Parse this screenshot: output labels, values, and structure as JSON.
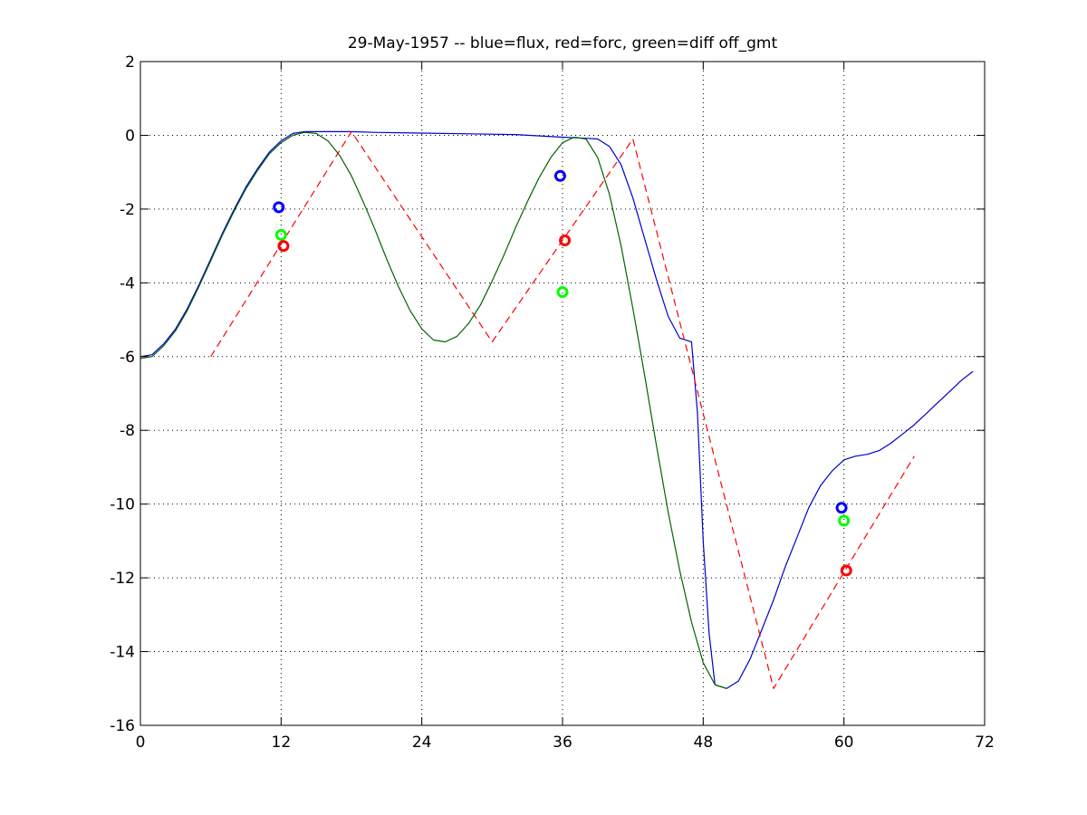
{
  "chart_data": {
    "type": "line",
    "title": "29-May-1957 -- blue=flux, red=forc, green=diff off_gmt",
    "xlabel": "",
    "ylabel": "",
    "xlim": [
      0,
      72
    ],
    "ylim": [
      -16,
      2
    ],
    "xticks": [
      0,
      12,
      24,
      36,
      48,
      60,
      72
    ],
    "yticks": [
      2,
      0,
      -2,
      -4,
      -6,
      -8,
      -10,
      -12,
      -14,
      -16
    ],
    "xtick_labels": [
      "0",
      "12",
      "24",
      "36",
      "48",
      "60",
      "72"
    ],
    "ytick_labels": [
      "2",
      "0",
      "-2",
      "-4",
      "-6",
      "-8",
      "-10",
      "-12",
      "-14",
      "-16"
    ],
    "grid": true,
    "legend": "none",
    "series": [
      {
        "name": "flux",
        "color": "#0000cc",
        "style": "solid",
        "x": [
          0,
          1,
          2,
          3,
          4,
          5,
          6,
          7,
          8,
          9,
          10,
          11,
          12,
          13,
          14,
          15,
          16,
          18,
          20,
          24,
          28,
          32,
          36,
          38,
          39,
          40,
          41,
          42,
          43,
          44,
          45,
          46,
          47,
          47.5,
          48,
          48.5,
          49,
          50,
          51,
          52,
          53,
          54,
          55,
          56,
          57,
          58,
          59,
          60,
          61,
          62,
          63,
          64,
          65,
          66,
          67,
          68,
          69,
          70,
          71
        ],
        "y": [
          -6.0,
          -5.95,
          -5.65,
          -5.25,
          -4.7,
          -4.05,
          -3.35,
          -2.65,
          -2.0,
          -1.4,
          -0.9,
          -0.45,
          -0.15,
          0.05,
          0.1,
          0.1,
          0.1,
          0.1,
          0.08,
          0.06,
          0.04,
          0.02,
          -0.05,
          -0.08,
          -0.1,
          -0.3,
          -0.8,
          -1.7,
          -2.8,
          -3.9,
          -4.9,
          -5.5,
          -5.6,
          -7.5,
          -11.0,
          -13.5,
          -14.9,
          -15.0,
          -14.8,
          -14.2,
          -13.4,
          -12.6,
          -11.7,
          -10.9,
          -10.1,
          -9.5,
          -9.1,
          -8.8,
          -8.7,
          -8.65,
          -8.55,
          -8.35,
          -8.1,
          -7.85,
          -7.55,
          -7.25,
          -6.95,
          -6.65,
          -6.4
        ]
      },
      {
        "name": "forc",
        "color": "#ff0000",
        "style": "dashed",
        "x": [
          6,
          18,
          30,
          42,
          54,
          66
        ],
        "y": [
          -6.0,
          0.1,
          -5.6,
          -0.1,
          -15.0,
          -8.7
        ]
      },
      {
        "name": "diff",
        "color": "#006400",
        "style": "solid",
        "x": [
          0,
          1,
          2,
          3,
          4,
          5,
          6,
          7,
          8,
          9,
          10,
          11,
          12,
          13,
          14,
          15,
          16,
          17,
          18,
          19,
          20,
          21,
          22,
          23,
          24,
          25,
          26,
          27,
          28,
          29,
          30,
          31,
          32,
          33,
          34,
          35,
          36,
          37,
          38,
          39,
          40,
          41,
          42,
          43,
          44,
          45,
          46,
          47,
          48,
          49,
          50
        ],
        "y": [
          -6.05,
          -6.0,
          -5.7,
          -5.3,
          -4.75,
          -4.1,
          -3.4,
          -2.7,
          -2.05,
          -1.45,
          -0.95,
          -0.5,
          -0.2,
          0.0,
          0.08,
          0.05,
          -0.15,
          -0.55,
          -1.1,
          -1.8,
          -2.55,
          -3.35,
          -4.1,
          -4.75,
          -5.25,
          -5.55,
          -5.6,
          -5.45,
          -5.1,
          -4.6,
          -3.95,
          -3.25,
          -2.5,
          -1.8,
          -1.15,
          -0.6,
          -0.2,
          -0.05,
          -0.1,
          -0.6,
          -1.6,
          -3.0,
          -4.7,
          -6.5,
          -8.4,
          -10.2,
          -11.8,
          -13.2,
          -14.3,
          -14.9,
          -15.0
        ]
      }
    ],
    "markers": [
      {
        "x": 11.8,
        "y": -1.95,
        "color": "#0000ff"
      },
      {
        "x": 12.0,
        "y": -2.7,
        "color": "#00ff00"
      },
      {
        "x": 12.2,
        "y": -3.0,
        "color": "#ff0000"
      },
      {
        "x": 35.8,
        "y": -1.1,
        "color": "#0000ff"
      },
      {
        "x": 36.0,
        "y": -4.25,
        "color": "#00ff00"
      },
      {
        "x": 36.2,
        "y": -2.85,
        "color": "#ff0000"
      },
      {
        "x": 59.8,
        "y": -10.1,
        "color": "#0000ff"
      },
      {
        "x": 60.0,
        "y": -10.45,
        "color": "#00ff00"
      },
      {
        "x": 60.2,
        "y": -11.8,
        "color": "#ff0000"
      }
    ]
  }
}
